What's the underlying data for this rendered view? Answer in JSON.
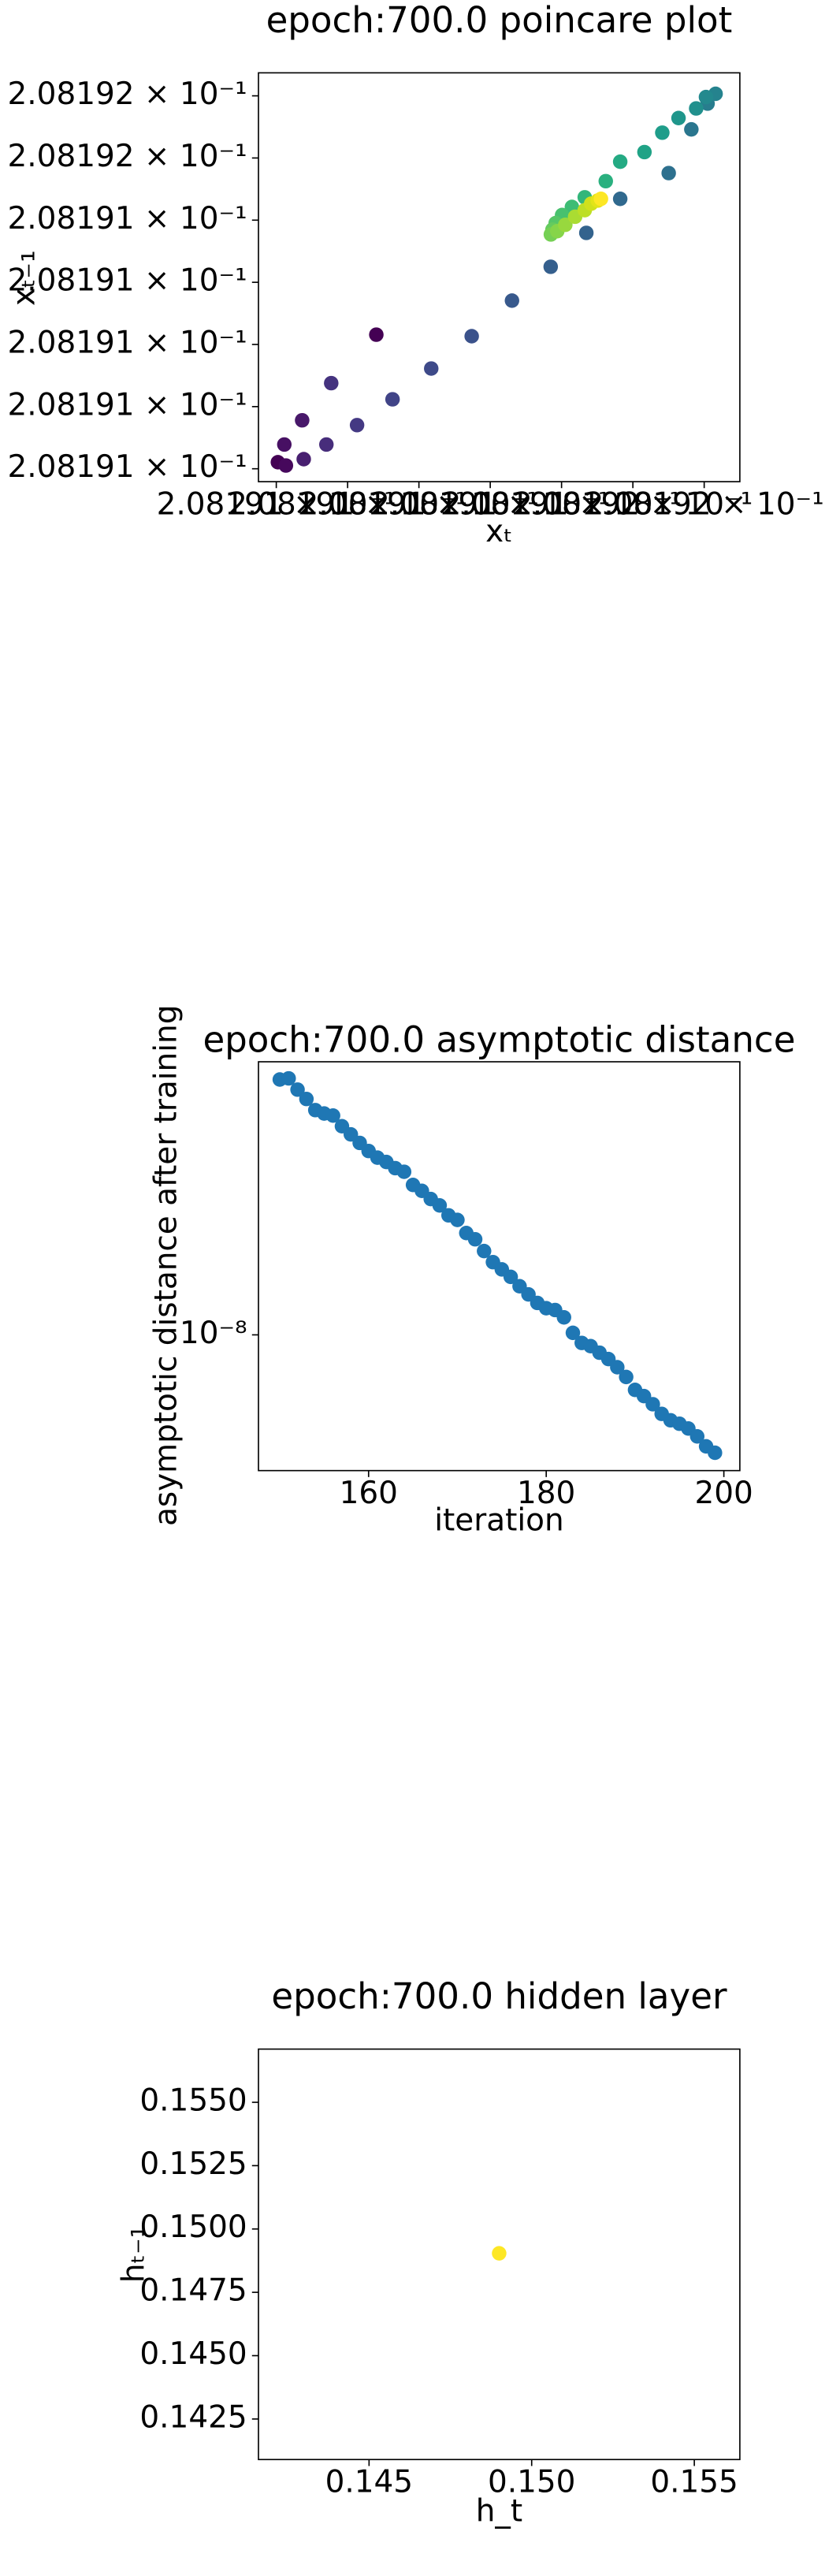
{
  "chart_data": [
    {
      "type": "scatter",
      "title": "epoch:700.0 poincare plot",
      "xlabel": "xₜ",
      "ylabel": "xₜ₋₁",
      "xlim": [
        0.20819131,
        0.20819158
      ],
      "ylim": [
        0.2081913117,
        0.2081915748
      ],
      "xticks": [
        {
          "value": 0.20819132,
          "label": "2.08191 × 10⁻¹"
        },
        {
          "value": 0.20819136,
          "label": "2.08191 × 10⁻¹"
        },
        {
          "value": 0.2081914,
          "label": "2.08191 × 10⁻¹"
        },
        {
          "value": 0.20819144,
          "label": "2.08191 × 10⁻¹"
        },
        {
          "value": 0.20819148,
          "label": "2.08191 × 10⁻¹"
        },
        {
          "value": 0.20819152,
          "label": "2.08192 × 10⁻¹"
        },
        {
          "value": 0.20819156,
          "label": "2.08192 × 10⁻¹"
        }
      ],
      "yticks": [
        {
          "value": 0.20819132,
          "label": "2.08191 × 10⁻¹"
        },
        {
          "value": 0.20819136,
          "label": "2.08191 × 10⁻¹"
        },
        {
          "value": 0.2081914,
          "label": "2.08191 × 10⁻¹"
        },
        {
          "value": 0.20819144,
          "label": "2.08191 × 10⁻¹"
        },
        {
          "value": 0.20819148,
          "label": "2.08191 × 10⁻¹"
        },
        {
          "value": 0.20819152,
          "label": "2.08192 × 10⁻¹"
        },
        {
          "value": 0.20819156,
          "label": "2.08192 × 10⁻¹"
        }
      ],
      "x": [
        0.2081913209,
        0.2081913254,
        0.2081913245,
        0.2081913345,
        0.2081913354,
        0.2081913481,
        0.2081913508,
        0.2081913653,
        0.2081913761,
        0.2081913852,
        0.2081914069,
        0.2081914296,
        0.2081914522,
        0.2081914739,
        0.2081914939,
        0.2081915129,
        0.2081915401,
        0.2081915528,
        0.2081915619,
        0.2081915664,
        0.208191561,
        0.2081915555,
        0.2081915456,
        0.2081915365,
        0.2081915265,
        0.2081915129,
        0.2081915048,
        0.208191493,
        0.2081914858,
        0.2081914803,
        0.2081914767,
        0.2081914749,
        0.208191474,
        0.2081914776,
        0.2081914821,
        0.2081914876,
        0.208191493,
        0.2081914966,
        0.2081915003,
        0.2081915021
      ],
      "y": [
        0.2081913242,
        0.2081913221,
        0.2081913356,
        0.2081913512,
        0.2081913262,
        0.2081913356,
        0.2081913751,
        0.2081913481,
        0.2081914063,
        0.2081913647,
        0.2081913845,
        0.2081914053,
        0.2081914282,
        0.20819145,
        0.2081914718,
        0.2081914937,
        0.2081915103,
        0.2081915384,
        0.208191555,
        0.2081915613,
        0.2081915592,
        0.2081915519,
        0.2081915457,
        0.2081915363,
        0.2081915238,
        0.2081915176,
        0.2081915051,
        0.2081914947,
        0.2081914885,
        0.2081914833,
        0.2081914781,
        0.2081914739,
        0.2081914708,
        0.2081914729,
        0.208191477,
        0.2081914822,
        0.2081914864,
        0.2081914906,
        0.2081914926,
        0.2081914937
      ],
      "colors": [
        "#440154",
        "#46085c",
        "#471063",
        "#48186a",
        "#481f70",
        "#472d7b",
        "#45337f",
        "#443983",
        "#440154",
        "#414487",
        "#3e4a89",
        "#3b528b",
        "#38598c",
        "#355f8d",
        "#33638d",
        "#30698e",
        "#2d708e",
        "#2a768e",
        "#287d8e",
        "#25838e",
        "#23898e",
        "#21908d",
        "#1f968b",
        "#1f9d8a",
        "#20a386",
        "#24aa83",
        "#2ab07f",
        "#32b67a",
        "#3dbc74",
        "#48c16e",
        "#56c667",
        "#65cb5e",
        "#75d054",
        "#86d549",
        "#98d83e",
        "#aadc32",
        "#bddf26",
        "#d0e11c",
        "#e2e418",
        "#fde725"
      ]
    },
    {
      "type": "scatter",
      "title": "epoch:700.0 asymptotic distance",
      "xlabel": "iteration",
      "ylabel": "asymptotic distance after training",
      "xlim": [
        147.6,
        201.8
      ],
      "ylim": [
        5.13e-09,
        3.83e-08
      ],
      "log_y": true,
      "color": "#1f77b4",
      "xticks": [
        160,
        180,
        200
      ],
      "yticks": [
        {
          "value": 1e-08,
          "label": "10⁻⁸"
        }
      ],
      "x": [
        150,
        151,
        152,
        153,
        154,
        155,
        156,
        157,
        158,
        159,
        160,
        161,
        162,
        163,
        164,
        165,
        166,
        167,
        168,
        169,
        170,
        171,
        172,
        173,
        174,
        175,
        176,
        177,
        178,
        179,
        180,
        181,
        182,
        183,
        184,
        185,
        186,
        187,
        188,
        189,
        190,
        191,
        192,
        193,
        194,
        195,
        196,
        197,
        198,
        199
      ],
      "y": [
        3.51e-08,
        3.53e-08,
        3.34e-08,
        3.19e-08,
        3.02e-08,
        2.97e-08,
        2.94e-08,
        2.79e-08,
        2.68e-08,
        2.57e-08,
        2.47e-08,
        2.39e-08,
        2.34e-08,
        2.27e-08,
        2.23e-08,
        2.09e-08,
        2.03e-08,
        1.95e-08,
        1.89e-08,
        1.8e-08,
        1.76e-08,
        1.65e-08,
        1.6e-08,
        1.51e-08,
        1.43e-08,
        1.38e-08,
        1.33e-08,
        1.27e-08,
        1.22e-08,
        1.17e-08,
        1.14e-08,
        1.13e-08,
        1.09e-08,
        1.01e-08,
        9.61e-09,
        9.46e-09,
        9.16e-09,
        8.88e-09,
        8.53e-09,
        8.13e-09,
        7.63e-09,
        7.4e-09,
        7.11e-09,
        6.78e-09,
        6.57e-09,
        6.46e-09,
        6.31e-09,
        6.07e-09,
        5.78e-09,
        5.6e-09
      ]
    },
    {
      "type": "scatter",
      "title": "epoch:700.0 hidden layer",
      "xlabel": "h_t",
      "ylabel": "hₜ₋₁",
      "xlim": [
        0.1416,
        0.1564
      ],
      "ylim": [
        0.1409,
        0.1571
      ],
      "xticks": [
        0.145,
        {
          "value": 0.15,
          "label": "0.150"
        },
        0.155
      ],
      "yticks": [
        0.1425,
        {
          "value": 0.145,
          "label": "0.1450"
        },
        0.1475,
        {
          "value": 0.15,
          "label": "0.1500"
        },
        0.1525,
        {
          "value": 0.155,
          "label": "0.1550"
        }
      ],
      "x": [
        0.149
      ],
      "y": [
        0.14904
      ],
      "colors": [
        "#fde725"
      ]
    }
  ]
}
